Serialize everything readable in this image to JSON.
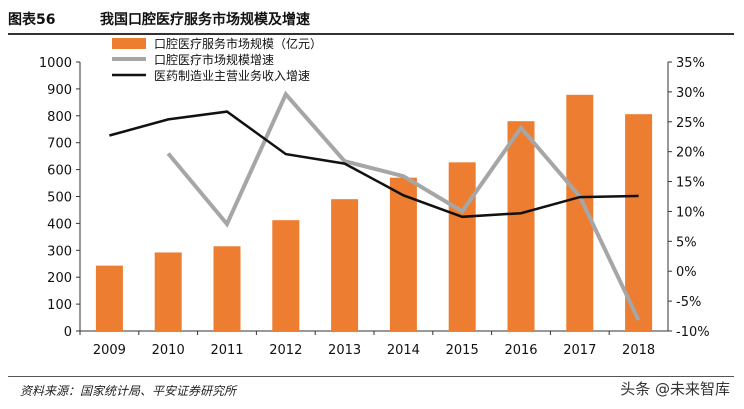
{
  "header": {
    "figure_label": "图表56",
    "title": "我国口腔医疗服务市场规模及增速"
  },
  "chart_data": {
    "type": "bar",
    "categories": [
      "2009",
      "2010",
      "2011",
      "2012",
      "2013",
      "2014",
      "2015",
      "2016",
      "2017",
      "2018"
    ],
    "series": [
      {
        "name": "口腔医疗服务市场规模（亿元）",
        "type": "bar",
        "axis": "left",
        "color": "#ED7D31",
        "values": [
          243,
          292,
          315,
          412,
          490,
          570,
          627,
          780,
          878,
          806
        ]
      },
      {
        "name": "口腔医疗市场规模增速",
        "type": "line",
        "axis": "right",
        "color": "#A6A6A6",
        "values": [
          null,
          0.197,
          0.079,
          0.296,
          0.184,
          0.159,
          0.1,
          0.24,
          0.125,
          -0.082
        ]
      },
      {
        "name": "医药制造业主营业务收入增速",
        "type": "line",
        "axis": "right",
        "color": "#111111",
        "values": [
          0.227,
          0.254,
          0.267,
          0.196,
          0.18,
          0.127,
          0.091,
          0.097,
          0.124,
          0.126
        ]
      }
    ],
    "y_left": {
      "lim": [
        0,
        1000
      ],
      "ticks": [
        "0",
        "100",
        "200",
        "300",
        "400",
        "500",
        "600",
        "700",
        "800",
        "900",
        "1000"
      ]
    },
    "y_right": {
      "lim": [
        -0.1,
        0.35
      ],
      "ticks": [
        "-10%",
        "-5%",
        "0%",
        "5%",
        "10%",
        "15%",
        "20%",
        "25%",
        "30%",
        "35%"
      ]
    },
    "legend": "top-left",
    "grid": false
  },
  "footer": {
    "source": "资料来源：国家统计局、平安证券研究所",
    "watermark": "头条 @未来智库"
  }
}
